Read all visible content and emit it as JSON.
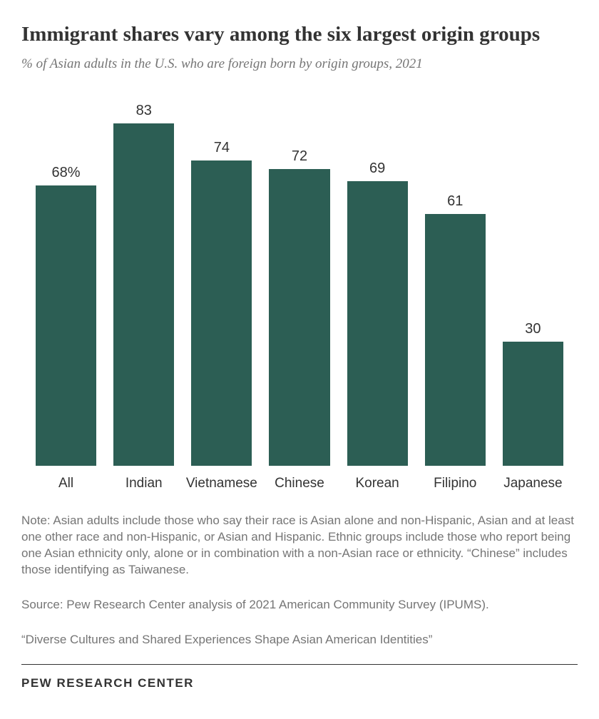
{
  "title": "Immigrant shares vary among the six largest origin groups",
  "subtitle": "% of Asian adults in the U.S. who are foreign born by origin groups, 2021",
  "chart": {
    "type": "bar",
    "categories": [
      "All",
      "Indian",
      "Vietnamese",
      "Chinese",
      "Korean",
      "Filipino",
      "Japanese"
    ],
    "values": [
      68,
      83,
      74,
      72,
      69,
      61,
      30
    ],
    "display_values": [
      "68%",
      "83",
      "74",
      "72",
      "69",
      "61",
      "30"
    ],
    "bar_color": "#2c5e54",
    "value_fontsize": 20,
    "label_fontsize": 19,
    "value_color": "#333333",
    "label_color": "#333333",
    "background_color": "#ffffff",
    "ylim_max": 83,
    "bar_width_pct": 78
  },
  "note": "Note: Asian adults include those who say their race is Asian alone and non-Hispanic, Asian and at least one other race and non-Hispanic, or Asian and Hispanic. Ethnic groups include those who report being one Asian ethnicity only, alone or in combination with a non-Asian race or ethnicity. “Chinese” includes those identifying as Taiwanese.",
  "source": "Source: Pew Research Center analysis of 2021 American Community Survey (IPUMS).",
  "report_title": "“Diverse Cultures and Shared Experiences Shape Asian American Identities”",
  "logo": "PEW RESEARCH CENTER",
  "colors": {
    "title_color": "#333333",
    "subtitle_color": "#757575",
    "note_color": "#757575",
    "divider_color": "#333333"
  }
}
